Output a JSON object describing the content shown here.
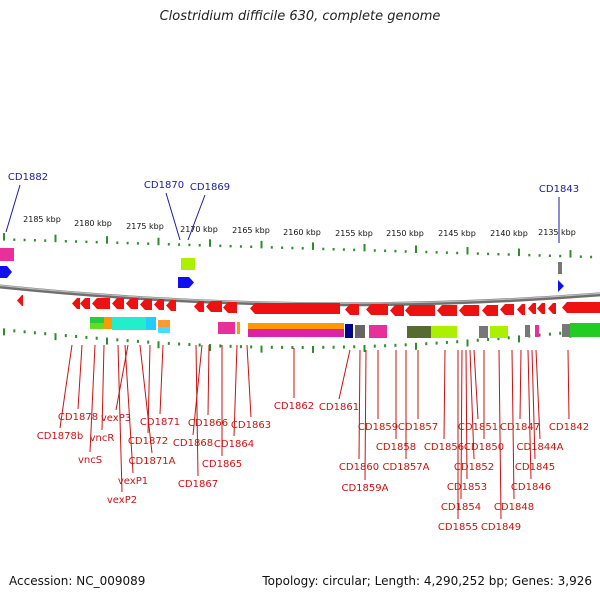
{
  "title": "Clostridium difficile 630, complete genome",
  "footer": {
    "accession": "Accession: NC_009089",
    "summary": "Topology: circular; Length: 4,290,252 bp; Genes: 3,926"
  },
  "colors": {
    "forward_gene": "#1010ee",
    "reverse_gene": "#ee1111",
    "forward_label": "#1a1aa8",
    "reverse_label": "#cc1111",
    "tick": "#2e8b2e",
    "backbone": "#808080"
  },
  "scale_labels": [
    "2185 kbp",
    "2180 kbp",
    "2175 kbp",
    "2170 kbp",
    "2165 kbp",
    "2160 kbp",
    "2155 kbp",
    "2150 kbp",
    "2145 kbp",
    "2140 kbp",
    "2135 kbp"
  ],
  "forward_labels": [
    "CD1882",
    "CD1870",
    "CD1869",
    "CD1843"
  ],
  "reverse_labels": [
    "CD1878b",
    "CD1878",
    "vncS",
    "vncR",
    "vexP2",
    "vexP1",
    "vexP3",
    "CD1871A",
    "CD1872",
    "CD1871",
    "CD1867",
    "CD1868",
    "CD1866",
    "CD1865",
    "CD1864",
    "CD1863",
    "CD1862",
    "CD1861",
    "CD1860",
    "CD1859A",
    "CD1859",
    "CD1858",
    "CD1857A",
    "CD1857",
    "CD1856",
    "CD1855",
    "CD1854",
    "CD1853",
    "CD1852",
    "CD1851",
    "CD1850",
    "CD1849",
    "CD1848",
    "CD1847",
    "CD1846",
    "CD1845",
    "CD1844A",
    "CD1842"
  ]
}
